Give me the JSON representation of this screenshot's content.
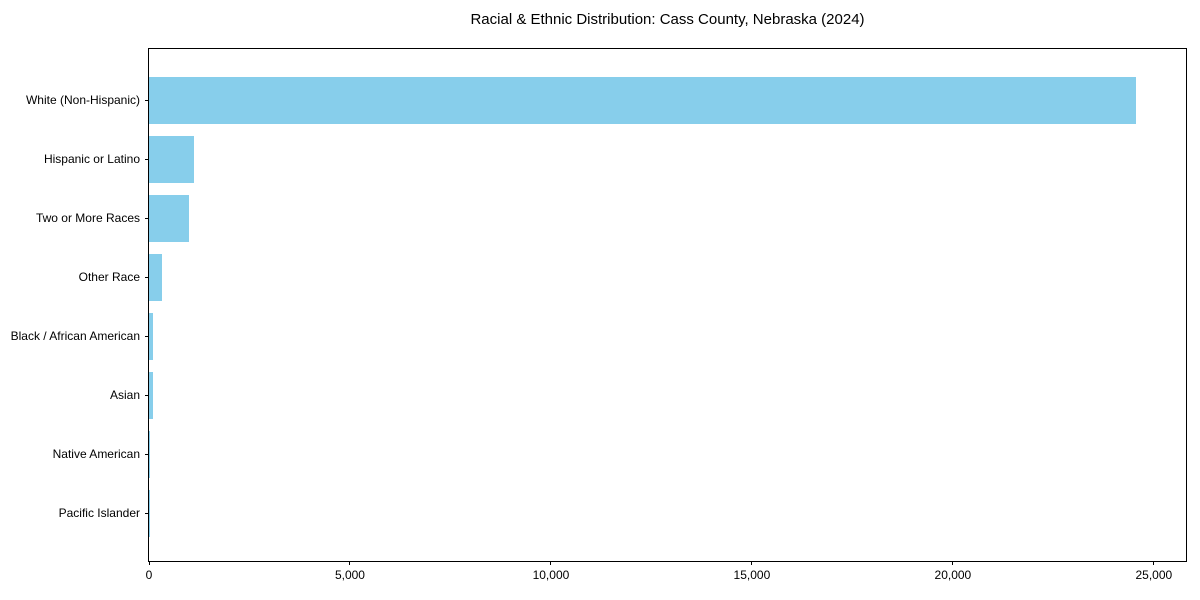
{
  "chart_data": {
    "type": "bar",
    "orientation": "horizontal",
    "title": "Racial & Ethnic Distribution: Cass County, Nebraska (2024)",
    "categories": [
      "White (Non-Hispanic)",
      "Hispanic or Latino",
      "Two or More Races",
      "Other Race",
      "Black / African American",
      "Asian",
      "Native American",
      "Pacific Islander"
    ],
    "values": [
      24550,
      1120,
      990,
      320,
      100,
      95,
      30,
      10
    ],
    "xlabel": "",
    "ylabel": "",
    "xlim": [
      0,
      25800
    ],
    "x_ticks": [
      0,
      5000,
      10000,
      15000,
      20000,
      25000
    ],
    "x_tick_labels": [
      "0",
      "5,000",
      "10,000",
      "15,000",
      "20,000",
      "25,000"
    ],
    "bar_color": "#87CEEB",
    "axis_color": "#000000",
    "text_color": "#000000",
    "background_color": "#ffffff",
    "grid": false,
    "legend": null
  }
}
